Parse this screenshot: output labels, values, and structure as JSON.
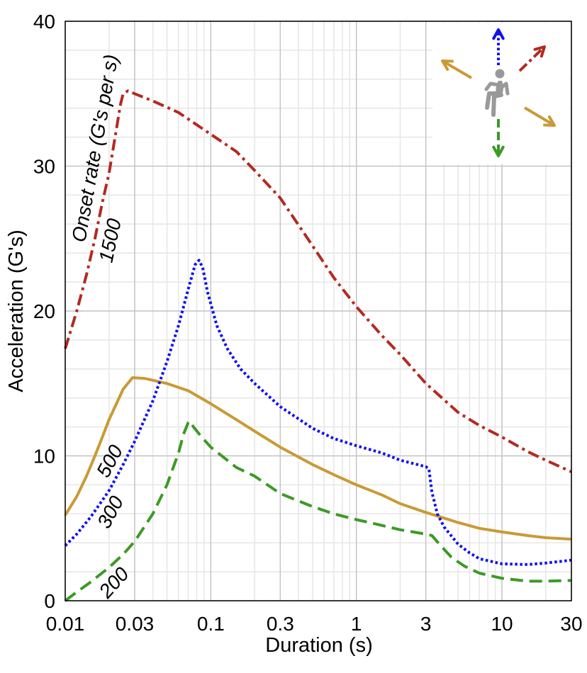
{
  "chart_data": {
    "type": "line",
    "xlabel": "Duration (s)",
    "ylabel": "Acceleration (G's)",
    "x_scale": "log",
    "xlim": [
      0.01,
      30
    ],
    "ylim": [
      0,
      40
    ],
    "x_ticks": [
      {
        "value": 0.01,
        "label": "0.01"
      },
      {
        "value": 0.03,
        "label": "0.03"
      },
      {
        "value": 0.1,
        "label": "0.1"
      },
      {
        "value": 0.3,
        "label": "0.3"
      },
      {
        "value": 1,
        "label": "1"
      },
      {
        "value": 3,
        "label": "3"
      },
      {
        "value": 10,
        "label": "10"
      },
      {
        "value": 30,
        "label": "30"
      }
    ],
    "y_ticks": [
      {
        "value": 0,
        "label": "0"
      },
      {
        "value": 10,
        "label": "10"
      },
      {
        "value": 20,
        "label": "20"
      },
      {
        "value": 30,
        "label": "30"
      },
      {
        "value": 40,
        "label": "40"
      }
    ],
    "grid": true,
    "annotation_title": "Onset rate (G's per s)",
    "series": [
      {
        "label": "1500",
        "direction": "red",
        "color": "#b22a22",
        "style": "dashdot",
        "points": [
          [
            0.01,
            17.4
          ],
          [
            0.012,
            20.0
          ],
          [
            0.014,
            22.5
          ],
          [
            0.016,
            25.0
          ],
          [
            0.018,
            27.5
          ],
          [
            0.02,
            29.5
          ],
          [
            0.022,
            32.0
          ],
          [
            0.024,
            34.3
          ],
          [
            0.025,
            35.0
          ],
          [
            0.027,
            35.2
          ],
          [
            0.03,
            35.0
          ],
          [
            0.04,
            34.5
          ],
          [
            0.06,
            33.7
          ],
          [
            0.1,
            32.2
          ],
          [
            0.15,
            31.0
          ],
          [
            0.2,
            29.7
          ],
          [
            0.3,
            27.8
          ],
          [
            0.5,
            24.5
          ],
          [
            0.7,
            22.3
          ],
          [
            1,
            20.3
          ],
          [
            1.5,
            18.3
          ],
          [
            2,
            17.0
          ],
          [
            3,
            15.0
          ],
          [
            5,
            13.0
          ],
          [
            7,
            12.1
          ],
          [
            10,
            11.3
          ],
          [
            15,
            10.3
          ],
          [
            20,
            9.7
          ],
          [
            30,
            8.9
          ]
        ]
      },
      {
        "label": "500",
        "direction": "yellow",
        "color": "#c99a36",
        "style": "solid",
        "points": [
          [
            0.01,
            5.9
          ],
          [
            0.012,
            7.2
          ],
          [
            0.014,
            8.6
          ],
          [
            0.016,
            10.0
          ],
          [
            0.018,
            11.3
          ],
          [
            0.02,
            12.5
          ],
          [
            0.025,
            14.6
          ],
          [
            0.029,
            15.4
          ],
          [
            0.035,
            15.35
          ],
          [
            0.05,
            15.0
          ],
          [
            0.07,
            14.5
          ],
          [
            0.1,
            13.6
          ],
          [
            0.15,
            12.5
          ],
          [
            0.2,
            11.7
          ],
          [
            0.3,
            10.6
          ],
          [
            0.5,
            9.4
          ],
          [
            0.7,
            8.7
          ],
          [
            1,
            8.0
          ],
          [
            1.5,
            7.3
          ],
          [
            2,
            6.7
          ],
          [
            3,
            6.1
          ],
          [
            5,
            5.4
          ],
          [
            7,
            5.0
          ],
          [
            10,
            4.75
          ],
          [
            15,
            4.5
          ],
          [
            20,
            4.35
          ],
          [
            30,
            4.25
          ]
        ]
      },
      {
        "label": "300",
        "direction": "blue",
        "color": "#1010ee",
        "style": "dotted",
        "points": [
          [
            0.01,
            3.8
          ],
          [
            0.012,
            4.6
          ],
          [
            0.015,
            5.8
          ],
          [
            0.02,
            7.6
          ],
          [
            0.025,
            9.4
          ],
          [
            0.03,
            11.0
          ],
          [
            0.04,
            13.8
          ],
          [
            0.05,
            16.5
          ],
          [
            0.06,
            19.0
          ],
          [
            0.07,
            21.5
          ],
          [
            0.078,
            23.2
          ],
          [
            0.083,
            23.5
          ],
          [
            0.088,
            23.0
          ],
          [
            0.095,
            21.3
          ],
          [
            0.11,
            19.0
          ],
          [
            0.13,
            17.4
          ],
          [
            0.16,
            16.0
          ],
          [
            0.2,
            15.0
          ],
          [
            0.3,
            13.4
          ],
          [
            0.5,
            11.9
          ],
          [
            0.7,
            11.2
          ],
          [
            1,
            10.7
          ],
          [
            1.5,
            10.2
          ],
          [
            2,
            9.7
          ],
          [
            3,
            9.25
          ],
          [
            3.15,
            9.1
          ],
          [
            3.3,
            7.5
          ],
          [
            3.6,
            6.0
          ],
          [
            4,
            5.1
          ],
          [
            5,
            3.9
          ],
          [
            6,
            3.3
          ],
          [
            7,
            2.9
          ],
          [
            10,
            2.55
          ],
          [
            15,
            2.5
          ],
          [
            20,
            2.6
          ],
          [
            30,
            2.8
          ]
        ]
      },
      {
        "label": "200",
        "direction": "green",
        "color": "#3c9a26",
        "style": "dashed",
        "points": [
          [
            0.01,
            0.0
          ],
          [
            0.012,
            0.6
          ],
          [
            0.015,
            1.3
          ],
          [
            0.02,
            2.3
          ],
          [
            0.025,
            3.2
          ],
          [
            0.03,
            4.1
          ],
          [
            0.04,
            6.0
          ],
          [
            0.05,
            8.0
          ],
          [
            0.06,
            10.2
          ],
          [
            0.065,
            11.5
          ],
          [
            0.07,
            12.3
          ],
          [
            0.072,
            12.4
          ],
          [
            0.076,
            12.0
          ],
          [
            0.085,
            11.4
          ],
          [
            0.1,
            10.6
          ],
          [
            0.15,
            9.2
          ],
          [
            0.2,
            8.6
          ],
          [
            0.3,
            7.4
          ],
          [
            0.5,
            6.5
          ],
          [
            0.7,
            6.0
          ],
          [
            1,
            5.6
          ],
          [
            1.5,
            5.2
          ],
          [
            2,
            4.9
          ],
          [
            3,
            4.6
          ],
          [
            3.3,
            4.5
          ],
          [
            3.8,
            3.8
          ],
          [
            4.5,
            3.0
          ],
          [
            5.5,
            2.4
          ],
          [
            7,
            1.9
          ],
          [
            10,
            1.55
          ],
          [
            15,
            1.35
          ],
          [
            20,
            1.35
          ],
          [
            30,
            1.4
          ]
        ]
      }
    ],
    "inset_icon": {
      "name": "seated-person-acceleration-directions-icon",
      "arrow_colors": {
        "up": "#1010ee",
        "down": "#3c9a26",
        "diagonal": "#b22a22",
        "sideways": "#c99a36"
      },
      "figure_color": "#999999"
    }
  }
}
